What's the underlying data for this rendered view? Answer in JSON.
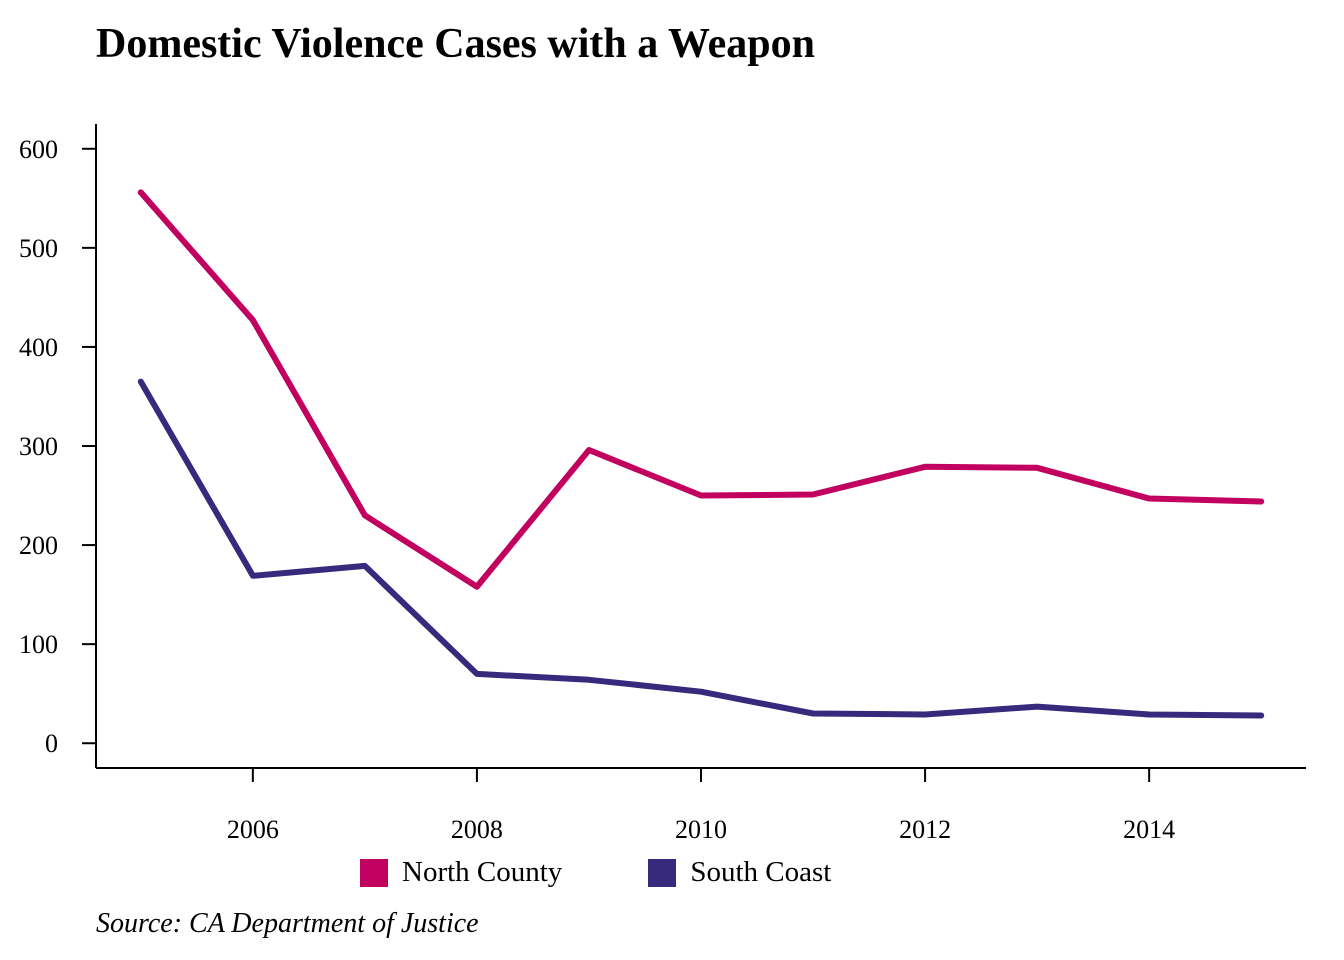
{
  "chart_data": {
    "type": "line",
    "title": "Domestic Violence Cases with a Weapon",
    "xlabel": "",
    "ylabel": "",
    "x": [
      2005,
      2006,
      2007,
      2008,
      2009,
      2010,
      2011,
      2012,
      2013,
      2014,
      2015
    ],
    "xlim": [
      2004.6,
      2015.4
    ],
    "ylim": [
      -25,
      625
    ],
    "x_ticks": [
      2006,
      2008,
      2010,
      2012,
      2014
    ],
    "y_ticks": [
      0,
      100,
      200,
      300,
      400,
      500,
      600
    ],
    "grid": false,
    "legend_position": "bottom",
    "series": [
      {
        "name": "North County",
        "color": "#c2005f",
        "values": [
          556,
          427,
          230,
          158,
          296,
          250,
          251,
          279,
          278,
          247,
          244
        ]
      },
      {
        "name": "South Coast",
        "color": "#372a7c",
        "values": [
          365,
          169,
          179,
          70,
          64,
          52,
          30,
          29,
          37,
          29,
          28
        ]
      }
    ],
    "source": "Source: CA Department of Justice"
  }
}
